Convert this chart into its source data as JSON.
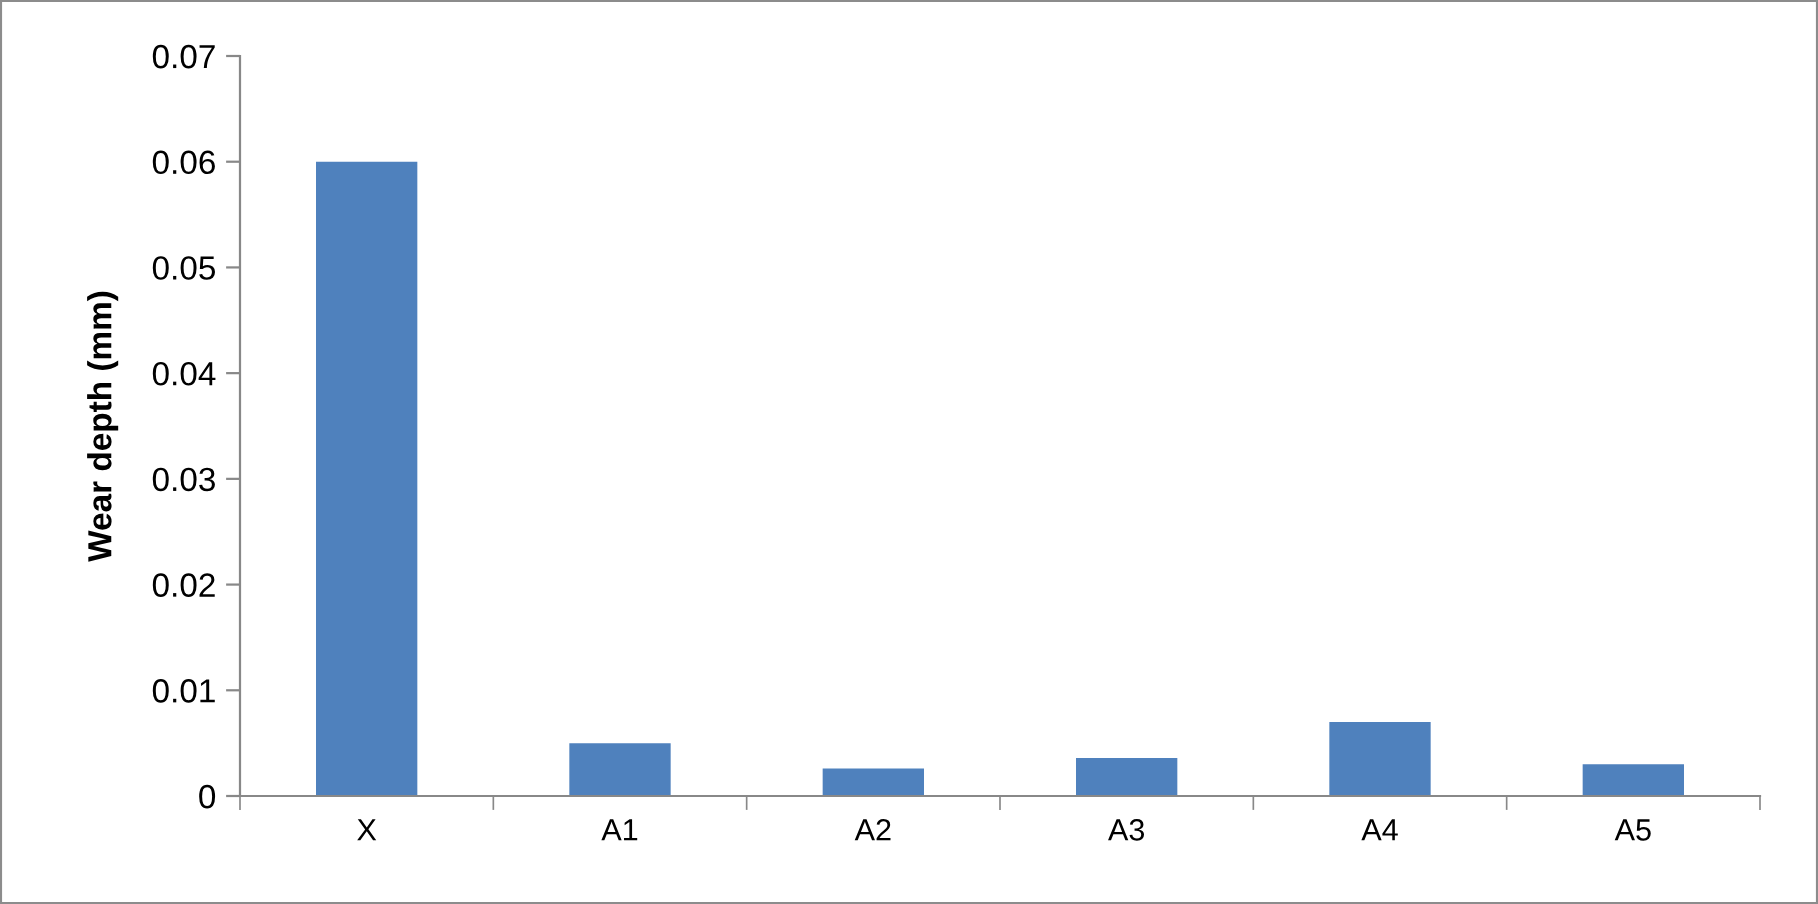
{
  "chart_data": {
    "type": "bar",
    "ylabel": "Wear depth (mm)",
    "categories": [
      "X",
      "A1",
      "A2",
      "A3",
      "A4",
      "A5"
    ],
    "values": [
      0.06,
      0.005,
      0.0026,
      0.0036,
      0.007,
      0.003
    ],
    "color": "#4f81bd",
    "ylim": [
      0,
      0.07
    ],
    "yticks": [
      {
        "value": 0,
        "label": "0"
      },
      0.01,
      0.02,
      0.03,
      0.04,
      0.05,
      0.06,
      0.07
    ],
    "grid": false,
    "legend": false
  }
}
